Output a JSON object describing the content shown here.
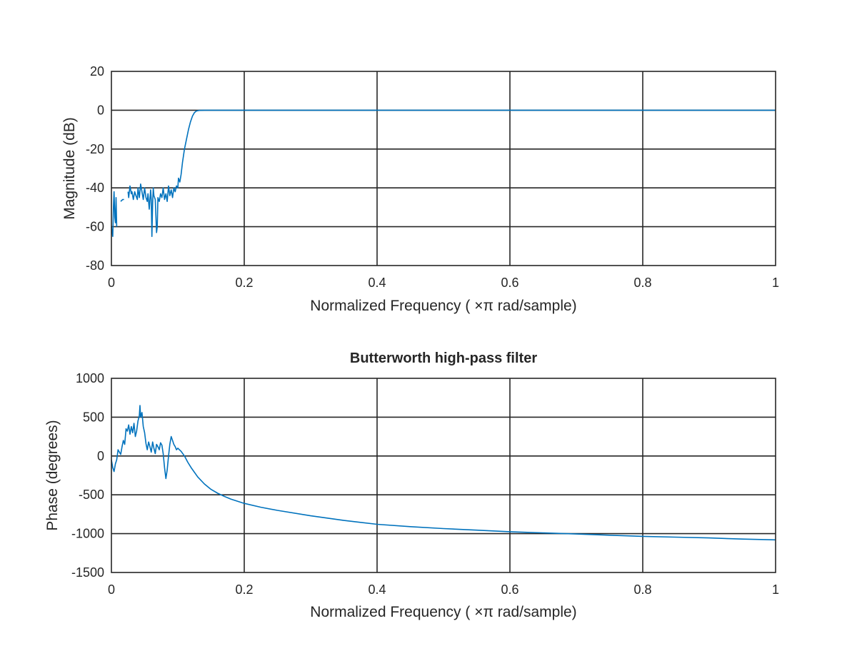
{
  "colors": {
    "series": "#0072bd",
    "axes": "#262626",
    "background": "#ffffff"
  },
  "chart_data": [
    {
      "type": "line",
      "title": "",
      "xlabel": "Normalized Frequency (  ×π rad/sample)",
      "ylabel": "Magnitude (dB)",
      "xlim": [
        0,
        1
      ],
      "ylim": [
        -80,
        20
      ],
      "xticks": [
        "0",
        "0.2",
        "0.4",
        "0.6",
        "0.8",
        "1"
      ],
      "yticks": [
        "20",
        "0",
        "-20",
        "-40",
        "-60",
        "-80"
      ],
      "grid": true,
      "series": [
        {
          "segments": [
            [
              [
                0.0,
                -60
              ],
              [
                0.002,
                -65
              ],
              [
                0.003,
                -50
              ],
              [
                0.004,
                -42
              ],
              [
                0.005,
                -55
              ],
              [
                0.006,
                -58
              ],
              [
                0.007,
                -45
              ],
              [
                0.008,
                -60
              ]
            ],
            [
              [
                0.014,
                -47
              ],
              [
                0.017,
                -46
              ],
              [
                0.019,
                -46
              ]
            ],
            [
              [
                0.025,
                -42
              ],
              [
                0.026,
                -45
              ],
              [
                0.028,
                -39
              ],
              [
                0.03,
                -43
              ],
              [
                0.031,
                -42
              ],
              [
                0.033,
                -46
              ],
              [
                0.035,
                -42
              ],
              [
                0.037,
                -44
              ],
              [
                0.039,
                -46
              ],
              [
                0.04,
                -40
              ],
              [
                0.042,
                -45
              ],
              [
                0.044,
                -38
              ],
              [
                0.046,
                -42
              ],
              [
                0.048,
                -46
              ],
              [
                0.05,
                -40
              ],
              [
                0.052,
                -45
              ],
              [
                0.054,
                -47
              ],
              [
                0.055,
                -43
              ],
              [
                0.057,
                -51
              ],
              [
                0.059,
                -41
              ],
              [
                0.06,
                -46
              ],
              [
                0.061,
                -65
              ],
              [
                0.062,
                -48
              ],
              [
                0.063,
                -40
              ],
              [
                0.064,
                -44
              ],
              [
                0.066,
                -46
              ],
              [
                0.068,
                -63
              ],
              [
                0.069,
                -60
              ],
              [
                0.07,
                -45
              ],
              [
                0.072,
                -47
              ],
              [
                0.074,
                -43
              ],
              [
                0.076,
                -45
              ],
              [
                0.078,
                -40
              ],
              [
                0.08,
                -46
              ],
              [
                0.082,
                -43
              ],
              [
                0.084,
                -47
              ],
              [
                0.086,
                -39
              ],
              [
                0.088,
                -44
              ],
              [
                0.09,
                -41
              ],
              [
                0.092,
                -45
              ],
              [
                0.094,
                -40
              ],
              [
                0.096,
                -42
              ],
              [
                0.098,
                -39
              ],
              [
                0.1,
                -40
              ],
              [
                0.101,
                -35
              ],
              [
                0.103,
                -37
              ],
              [
                0.105,
                -33
              ],
              [
                0.107,
                -27
              ],
              [
                0.11,
                -20
              ],
              [
                0.113,
                -15
              ],
              [
                0.116,
                -10
              ],
              [
                0.119,
                -6
              ],
              [
                0.122,
                -3
              ],
              [
                0.125,
                -1.2
              ],
              [
                0.128,
                -0.4
              ],
              [
                0.132,
                -0.1
              ],
              [
                0.14,
                0
              ],
              [
                0.2,
                0
              ],
              [
                0.4,
                0
              ],
              [
                0.6,
                0
              ],
              [
                0.8,
                0
              ],
              [
                1.0,
                0
              ]
            ]
          ]
        }
      ]
    },
    {
      "type": "line",
      "title": "Butterworth high-pass filter",
      "xlabel": "Normalized Frequency (  ×π rad/sample)",
      "ylabel": "Phase (degrees)",
      "xlim": [
        0,
        1
      ],
      "ylim": [
        -1500,
        1000
      ],
      "xticks": [
        "0",
        "0.2",
        "0.4",
        "0.6",
        "0.8",
        "1"
      ],
      "yticks": [
        "1000",
        "500",
        "0",
        "-500",
        "-1000",
        "-1500"
      ],
      "grid": true,
      "series": [
        {
          "segments": [
            [
              [
                0.0,
                -50
              ],
              [
                0.002,
                -150
              ],
              [
                0.004,
                -200
              ],
              [
                0.006,
                -100
              ],
              [
                0.008,
                -50
              ],
              [
                0.01,
                80
              ],
              [
                0.012,
                50
              ],
              [
                0.014,
                20
              ],
              [
                0.016,
                120
              ],
              [
                0.018,
                200
              ],
              [
                0.02,
                150
              ],
              [
                0.022,
                350
              ],
              [
                0.024,
                320
              ],
              [
                0.026,
                400
              ],
              [
                0.028,
                280
              ],
              [
                0.03,
                380
              ],
              [
                0.032,
                300
              ],
              [
                0.034,
                420
              ],
              [
                0.036,
                250
              ],
              [
                0.038,
                320
              ],
              [
                0.04,
                450
              ],
              [
                0.042,
                520
              ],
              [
                0.043,
                650
              ],
              [
                0.044,
                500
              ],
              [
                0.046,
                560
              ],
              [
                0.048,
                380
              ],
              [
                0.05,
                300
              ],
              [
                0.052,
                160
              ],
              [
                0.054,
                80
              ],
              [
                0.056,
                180
              ],
              [
                0.058,
                120
              ],
              [
                0.06,
                50
              ],
              [
                0.062,
                180
              ],
              [
                0.064,
                100
              ],
              [
                0.066,
                30
              ],
              [
                0.068,
                150
              ],
              [
                0.07,
                120
              ],
              [
                0.072,
                80
              ],
              [
                0.074,
                170
              ],
              [
                0.076,
                140
              ],
              [
                0.078,
                30
              ],
              [
                0.08,
                -150
              ],
              [
                0.082,
                -290
              ],
              [
                0.084,
                -180
              ],
              [
                0.086,
                0
              ],
              [
                0.088,
                150
              ],
              [
                0.09,
                250
              ],
              [
                0.092,
                200
              ],
              [
                0.094,
                150
              ],
              [
                0.096,
                120
              ],
              [
                0.098,
                80
              ],
              [
                0.1,
                100
              ],
              [
                0.105,
                60
              ],
              [
                0.11,
                0
              ],
              [
                0.115,
                -80
              ],
              [
                0.12,
                -150
              ],
              [
                0.13,
                -270
              ],
              [
                0.14,
                -360
              ],
              [
                0.15,
                -430
              ],
              [
                0.16,
                -480
              ],
              [
                0.17,
                -520
              ],
              [
                0.18,
                -555
              ],
              [
                0.2,
                -610
              ],
              [
                0.225,
                -660
              ],
              [
                0.25,
                -700
              ],
              [
                0.3,
                -770
              ],
              [
                0.35,
                -830
              ],
              [
                0.4,
                -880
              ],
              [
                0.45,
                -910
              ],
              [
                0.5,
                -935
              ],
              [
                0.55,
                -955
              ],
              [
                0.6,
                -975
              ],
              [
                0.65,
                -990
              ],
              [
                0.7,
                -1005
              ],
              [
                0.75,
                -1020
              ],
              [
                0.8,
                -1035
              ],
              [
                0.85,
                -1045
              ],
              [
                0.9,
                -1055
              ],
              [
                0.95,
                -1070
              ],
              [
                1.0,
                -1080
              ]
            ]
          ]
        }
      ]
    }
  ]
}
